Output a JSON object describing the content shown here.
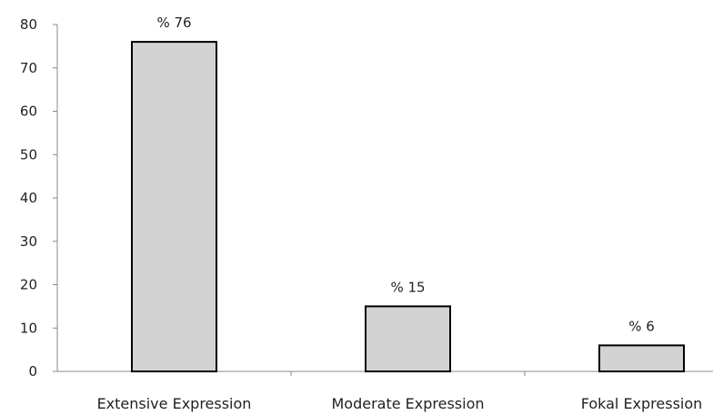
{
  "chart_data": {
    "type": "bar",
    "categories": [
      "Extensive Expression",
      "Moderate Expression",
      "Fokal Expression"
    ],
    "values": [
      76,
      15,
      6
    ],
    "data_labels": [
      "% 76",
      "% 15",
      "% 6"
    ],
    "title": "",
    "xlabel": "",
    "ylabel": "",
    "ylim": [
      0,
      80
    ],
    "yticks": [
      0,
      10,
      20,
      30,
      40,
      50,
      60,
      70,
      80
    ],
    "yticks_labels": [
      "0",
      "10",
      "20",
      "30",
      "40",
      "50",
      "60",
      "70",
      "80"
    ],
    "grid": false,
    "legend": "none",
    "colors": {
      "bar_fill": "#d3d3d3",
      "bar_stroke": "#000000",
      "axis": "#888888"
    }
  }
}
